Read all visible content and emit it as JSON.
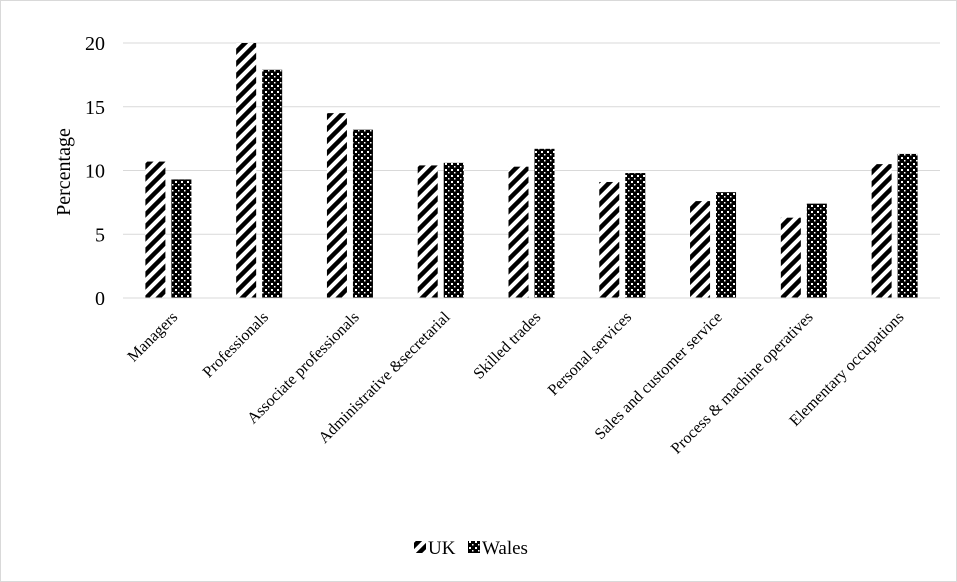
{
  "chart_data": {
    "type": "bar",
    "title": "",
    "xlabel": "",
    "ylabel": "Percentage",
    "ylim": [
      0,
      20
    ],
    "yticks": [
      0,
      5,
      10,
      15,
      20
    ],
    "grid": true,
    "legend_position": "bottom",
    "categories": [
      "Managers",
      "Professionals",
      "Associate professionals",
      "Administrative &secretarial",
      "Skilled trades",
      "Personal services",
      "Sales and customer service",
      "Process & machine operatives",
      "Elementary occupations"
    ],
    "series": [
      {
        "name": "UK",
        "pattern": "diagonal-stripes",
        "color": "#000000",
        "values": [
          10.7,
          20.0,
          14.5,
          10.4,
          10.3,
          9.1,
          7.6,
          6.3,
          10.5
        ]
      },
      {
        "name": "Wales",
        "pattern": "dotted",
        "color": "#000000",
        "values": [
          9.3,
          17.9,
          13.2,
          10.6,
          11.7,
          9.8,
          8.3,
          7.4,
          11.3
        ]
      }
    ]
  }
}
